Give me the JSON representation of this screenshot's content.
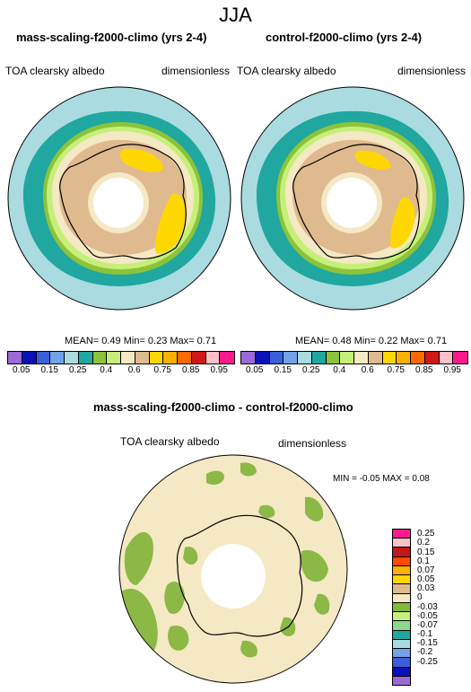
{
  "season": "JJA",
  "panel_left": {
    "title": "mass-scaling-f2000-climo (yrs 2-4)",
    "field": "TOA clearsky albedo",
    "units": "dimensionless",
    "stats": "MEAN=  0.49  Min=  0.23  Max=  0.71"
  },
  "panel_right": {
    "title": "control-f2000-climo (yrs 2-4)",
    "field": "TOA clearsky albedo",
    "units": "dimensionless",
    "stats": "MEAN=  0.48  Min=  0.22  Max=  0.71"
  },
  "panel_diff": {
    "title": "mass-scaling-f2000-climo - control-f2000-climo",
    "field": "TOA clearsky albedo",
    "units": "dimensionless",
    "minmax": "MIN =  -0.05 MAX =  0.08"
  },
  "colorbar_top": {
    "colors": [
      "#9b6ad8",
      "#0c10b8",
      "#3a5fd8",
      "#74a2e8",
      "#a9dbe0",
      "#1fa7a0",
      "#8cc33a",
      "#c6ef7a",
      "#f5e8c4",
      "#dfba8e",
      "#ffd700",
      "#ffb000",
      "#ff6a00",
      "#d01818",
      "#ffc0c8",
      "#ff1a8c"
    ],
    "tick_labels": [
      "0.05",
      "0.15",
      "0.25",
      "0.4",
      "0.6",
      "0.75",
      "0.85",
      "0.95"
    ]
  },
  "colorbar_diff": {
    "colors": [
      "#ff1a8c",
      "#ffc0c8",
      "#c21818",
      "#ff4a00",
      "#ffb000",
      "#ffd700",
      "#dfba8e",
      "#f5e8c4",
      "#86b83a",
      "#c6ef7a",
      "#8cd88c",
      "#1fa7a0",
      "#a9dbe0",
      "#74a2e8",
      "#3a5fd8",
      "#0c10b8",
      "#9b6ad8"
    ],
    "tick_labels": [
      "0.25",
      "0.2",
      "0.15",
      "0.1",
      "0.07",
      "0.05",
      "0.03",
      "0",
      "-0.03",
      "-0.05",
      "-0.07",
      "-0.1",
      "-0.15",
      "-0.2",
      "-0.25"
    ]
  }
}
